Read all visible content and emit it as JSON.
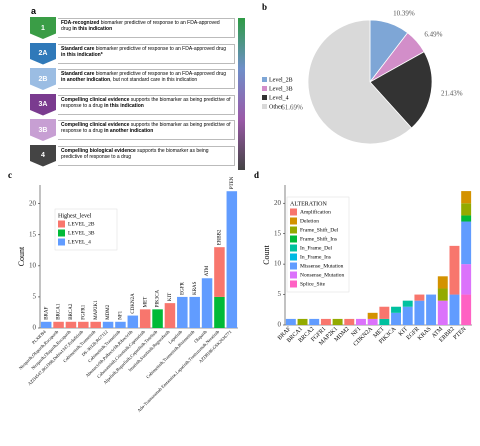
{
  "levels": {
    "label": "a",
    "items": [
      {
        "level": "1",
        "color": "#3a9d46",
        "segments": [
          {
            "text": "FDA-recognized",
            "bold": true
          },
          {
            "text": " biomarker predictive of response to an FDA-approved drug ",
            "bold": false
          },
          {
            "text": "in this indication",
            "bold": true
          }
        ]
      },
      {
        "level": "2A",
        "color": "#2f79b9",
        "segments": [
          {
            "text": "Standard care",
            "bold": true
          },
          {
            "text": " biomarker predictive of response to an FDA-approved drug ",
            "bold": false
          },
          {
            "text": "in this indication*",
            "bold": true
          }
        ]
      },
      {
        "level": "2B",
        "color": "#9bbde3",
        "segments": [
          {
            "text": "Standard care",
            "bold": true
          },
          {
            "text": " biomarker predictive of response to an FDA-approved drug ",
            "bold": false
          },
          {
            "text": "in another indication",
            "bold": true
          },
          {
            "text": ", but not standard care in this indication",
            "bold": false
          }
        ]
      },
      {
        "level": "3A",
        "color": "#7a3b8f",
        "segments": [
          {
            "text": "Compelling clinical evidence",
            "bold": true
          },
          {
            "text": " supports the biomarker as being predictive of response to a drug ",
            "bold": false
          },
          {
            "text": "in this indication",
            "bold": true
          }
        ]
      },
      {
        "level": "3B",
        "color": "#c79fd3",
        "segments": [
          {
            "text": "Compelling clinical evidence",
            "bold": true
          },
          {
            "text": " supports the biomarker as being predictive of response to a drug ",
            "bold": false
          },
          {
            "text": "in another indication",
            "bold": true
          }
        ]
      },
      {
        "level": "4",
        "color": "#444444",
        "segments": [
          {
            "text": "Compelling biological evidence",
            "bold": true
          },
          {
            "text": " supports the biomarker as being predictive of response to a drug",
            "bold": false
          }
        ]
      }
    ]
  },
  "chart_data": [
    {
      "type": "pie",
      "label": "b",
      "categories": [
        "Level_2B",
        "Level_3B",
        "Level_4",
        "Other"
      ],
      "values": [
        10.39,
        6.49,
        21.43,
        61.69
      ],
      "value_labels": [
        "10.39%",
        "6.49%",
        "21.43%",
        "61.69%"
      ],
      "colors": [
        "#7ea6d6",
        "#d28ec9",
        "#333333",
        "#d9d9d9"
      ],
      "legend": "left"
    },
    {
      "type": "bar",
      "stacked": true,
      "label": "c",
      "ylabel": "Count",
      "legend_title": "Highest_level",
      "legend": "upper left",
      "categories": [
        "PLX8394",
        "Niraparib,Olaparib,Rucaparib",
        "Niraparib,Olaparib,Rucaparib",
        "AZD4547,BGJ398,Debio1347,Erdafitinib",
        "Cobimetinib,Trametinib",
        "DS-3032b,RG7112",
        "Cobimetinib,Trametinib",
        "Abemaciclib,Palbociclib,Ribociclib",
        "Cabozantinib,Crizotinib,Capmatinib",
        "Alpelisib,Buparlisib,Copanlisib,Taselisib",
        "Imatinib,Sunitinib,Regorafenib",
        "Lapatinib",
        "Cobimetinib,Trametinib,Binimetinib",
        "Olaparib",
        "Ado-Trastuzumab Emtansine,Lapatinib,Trastuzumab,Neratinib",
        "AZD8186,GSK2636771"
      ],
      "bar_labels": [
        "BRAF",
        "BRCA1",
        "BRCA2",
        "FGFR1",
        "MAP2K1",
        "MDM2",
        "NF1",
        "CDKN2A",
        "MET",
        "PIK3CA",
        "KIT",
        "EGFR",
        "KRAS",
        "ATM",
        "ERBB2",
        "PTEN"
      ],
      "series": [
        {
          "name": "LEVEL_2B",
          "color": "#F8766D",
          "values": [
            0,
            1,
            1,
            1,
            1,
            0,
            0,
            0,
            3,
            0,
            4,
            0,
            0,
            0,
            8,
            0
          ]
        },
        {
          "name": "LEVEL_3B",
          "color": "#00BA38",
          "values": [
            0,
            0,
            0,
            0,
            0,
            0,
            0,
            0,
            0,
            3,
            0,
            0,
            0,
            0,
            5,
            0
          ]
        },
        {
          "name": "LEVEL_4",
          "color": "#619CFF",
          "values": [
            1,
            0,
            0,
            0,
            0,
            1,
            1,
            2,
            0,
            0,
            0,
            5,
            5,
            8,
            0,
            22
          ]
        }
      ],
      "ylim": [
        0,
        23
      ],
      "yticks": [
        0,
        5,
        10,
        15,
        20
      ]
    },
    {
      "type": "bar",
      "stacked": true,
      "label": "d",
      "ylabel": "Count",
      "legend_title": "ALTERATION",
      "legend": "upper left",
      "categories": [
        "BRAF",
        "BRCA1",
        "BRCA2",
        "FGFR1",
        "MAP2K1",
        "MDM2",
        "NF1",
        "CDKN2A",
        "MET",
        "PIK3CA",
        "KIT",
        "EGFR",
        "KRAS",
        "ATM",
        "ERBB2",
        "PTEN"
      ],
      "series": [
        {
          "name": "Amplification",
          "color": "#F8766D",
          "values": [
            0,
            0,
            0,
            1,
            0,
            1,
            0,
            0,
            2,
            0,
            0,
            1,
            0,
            0,
            8,
            0
          ]
        },
        {
          "name": "Deletion",
          "color": "#D39200",
          "values": [
            0,
            0,
            0,
            0,
            0,
            0,
            0,
            1,
            0,
            0,
            0,
            0,
            0,
            2,
            0,
            2
          ]
        },
        {
          "name": "Frame_Shift_Del",
          "color": "#93AA00",
          "values": [
            0,
            1,
            0,
            0,
            1,
            0,
            0,
            0,
            0,
            0,
            0,
            0,
            0,
            2,
            0,
            2
          ]
        },
        {
          "name": "Frame_Shift_Ins",
          "color": "#00BA38",
          "values": [
            0,
            0,
            0,
            0,
            0,
            0,
            0,
            0,
            0,
            0,
            0,
            0,
            0,
            0,
            0,
            1
          ]
        },
        {
          "name": "In_Frame_Del",
          "color": "#00C19F",
          "values": [
            0,
            0,
            0,
            0,
            0,
            0,
            0,
            0,
            1,
            1,
            1,
            0,
            0,
            0,
            0,
            0
          ]
        },
        {
          "name": "In_Frame_Ins",
          "color": "#00B9E3",
          "values": [
            0,
            0,
            0,
            0,
            0,
            0,
            0,
            0,
            0,
            0,
            0,
            0,
            0,
            0,
            0,
            0
          ]
        },
        {
          "name": "Missense_Mutation",
          "color": "#619CFF",
          "values": [
            1,
            0,
            1,
            0,
            0,
            0,
            0,
            0,
            0,
            2,
            3,
            4,
            5,
            0,
            5,
            7
          ]
        },
        {
          "name": "Nonsense_Mutation",
          "color": "#DB72FB",
          "values": [
            0,
            0,
            0,
            0,
            0,
            0,
            1,
            1,
            0,
            0,
            0,
            0,
            0,
            4,
            0,
            5
          ]
        },
        {
          "name": "Splice_Site",
          "color": "#FF61C3",
          "values": [
            0,
            0,
            0,
            0,
            0,
            0,
            0,
            0,
            0,
            0,
            0,
            0,
            0,
            0,
            0,
            5
          ]
        }
      ],
      "ylim": [
        0,
        23
      ],
      "yticks": [
        0,
        5,
        10,
        15,
        20
      ]
    }
  ]
}
